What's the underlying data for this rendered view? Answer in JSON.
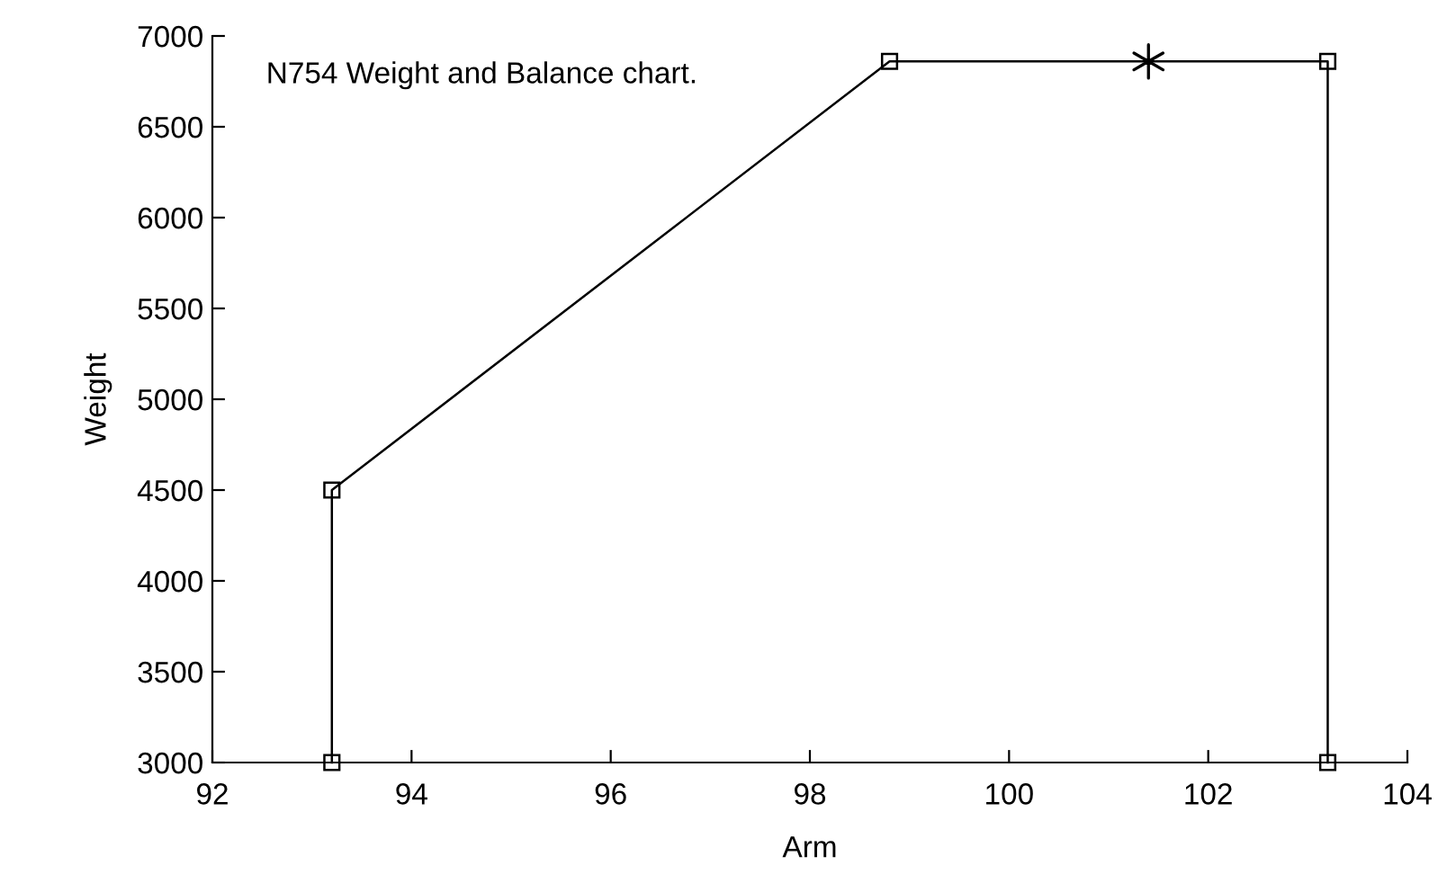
{
  "chart_data": {
    "type": "line",
    "xlabel": "Arm",
    "ylabel": "Weight",
    "annotations": [
      "N754 Weight and Balance chart."
    ],
    "series": [
      {
        "x": [
          93.2,
          93.2,
          98.8,
          103.2,
          103.2
        ],
        "values": [
          3000,
          4500,
          6860,
          6860,
          3000
        ],
        "color": "#000000",
        "marker": "square"
      },
      {
        "type": "scatter",
        "x": [
          101.4
        ],
        "values": [
          6860
        ],
        "color": "#000000",
        "marker": "cross"
      }
    ],
    "xlim": [
      92,
      104
    ],
    "xticks": [
      92,
      94,
      96,
      98,
      100,
      102,
      104
    ],
    "ylim": [
      3000,
      7000
    ],
    "yticks": [
      3000,
      3500,
      4000,
      4500,
      5000,
      5500,
      6000,
      6500,
      7000
    ],
    "grid": false,
    "legend": false
  }
}
